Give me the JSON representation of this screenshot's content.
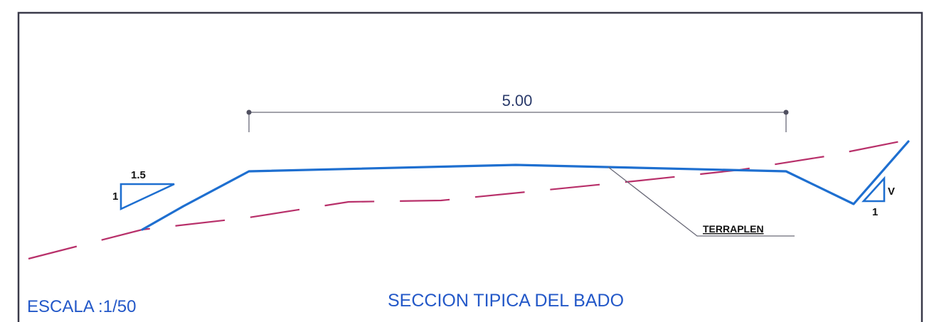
{
  "dimension": {
    "length_label": "5.00"
  },
  "slope_left": {
    "horizontal": "1.5",
    "vertical": "1"
  },
  "slope_right": {
    "horizontal": "1",
    "vertical": "V"
  },
  "labels": {
    "terraplen": "TERRAPLEN"
  },
  "footer": {
    "scale": "ESCALA :1/50",
    "title": "SECCION TIPICA DEL BADO"
  },
  "colors": {
    "road_line": "#1e6fd0",
    "ground_line": "#b8306a",
    "title_text": "#2358c8",
    "dimension_line": "#6a6a78"
  }
}
